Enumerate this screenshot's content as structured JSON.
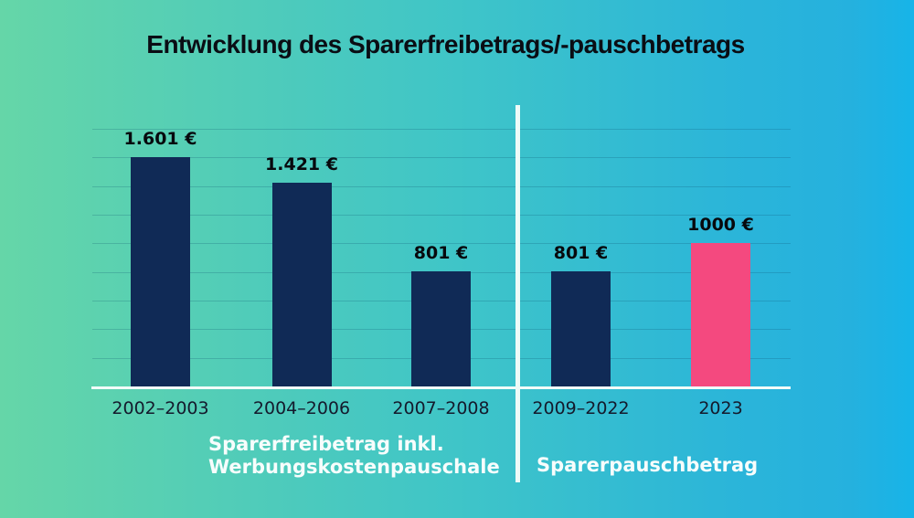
{
  "title": "Entwicklung des Sparerfreibetrags/-pauschbetrags",
  "chart_data": {
    "type": "bar",
    "title": "Entwicklung des Sparerfreibetrags/-pauschbetrags",
    "categories": [
      "2002–2003",
      "2004–2006",
      "2007–2008",
      "2009–2022",
      "2023"
    ],
    "values": [
      1601,
      1421,
      801,
      801,
      1000
    ],
    "value_labels": [
      "1.601 €",
      "1.421 €",
      "801 €",
      "801 €",
      "1000 €"
    ],
    "bar_colors": [
      "#102a56",
      "#102a56",
      "#102a56",
      "#102a56",
      "#f4497f"
    ],
    "xlabel": "",
    "ylabel": "",
    "ylim": [
      0,
      1800
    ],
    "gridline_step": 200,
    "grid": true,
    "legend": "none",
    "groups": [
      {
        "label_lines": [
          "Sparerfreibetrag inkl.",
          "Werbungskostenpauschale"
        ],
        "categories": [
          "2002–2003",
          "2004–2006",
          "2007–2008"
        ]
      },
      {
        "label_lines": [
          "Sparerpauschbetrag"
        ],
        "categories": [
          "2009–2022",
          "2023"
        ]
      }
    ]
  },
  "colors": {
    "background_left": "#65d6a8",
    "background_right": "#17b4e8",
    "bar_navy": "#102a56",
    "bar_pink": "#f4497f",
    "divider_white": "#eefbf8",
    "title_text": "#0a0d14",
    "tick_text": "#141a2c",
    "group_label_text": "#f7fdfc",
    "gridline": "rgba(10,75,105,0.22)"
  }
}
